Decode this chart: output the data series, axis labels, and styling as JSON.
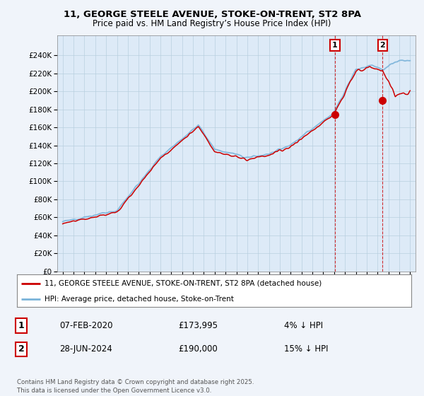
{
  "title_line1": "11, GEORGE STEELE AVENUE, STOKE-ON-TRENT, ST2 8PA",
  "title_line2": "Price paid vs. HM Land Registry’s House Price Index (HPI)",
  "xlim_start": 1994.5,
  "xlim_end": 2027.5,
  "ylim_min": 0,
  "ylim_max": 262000,
  "yticks": [
    0,
    20000,
    40000,
    60000,
    80000,
    100000,
    120000,
    140000,
    160000,
    180000,
    200000,
    220000,
    240000
  ],
  "ytick_labels": [
    "£0",
    "£20K",
    "£40K",
    "£60K",
    "£80K",
    "£100K",
    "£120K",
    "£140K",
    "£160K",
    "£180K",
    "£200K",
    "£220K",
    "£240K"
  ],
  "xticks": [
    1995,
    1996,
    1997,
    1998,
    1999,
    2000,
    2001,
    2002,
    2003,
    2004,
    2005,
    2006,
    2007,
    2008,
    2009,
    2010,
    2011,
    2012,
    2013,
    2014,
    2015,
    2016,
    2017,
    2018,
    2019,
    2020,
    2021,
    2022,
    2023,
    2024,
    2025,
    2026,
    2027
  ],
  "hpi_color": "#7ab3d9",
  "price_color": "#cc0000",
  "shade_color": "#ddeaf7",
  "sale1_year": 2020.08,
  "sale1_price": 173995,
  "sale2_year": 2024.47,
  "sale2_price": 190000,
  "sale1_label": "1",
  "sale2_label": "2",
  "legend_label1": "11, GEORGE STEELE AVENUE, STOKE-ON-TRENT, ST2 8PA (detached house)",
  "legend_label2": "HPI: Average price, detached house, Stoke-on-Trent",
  "footnote1_num": "1",
  "footnote1_date": "07-FEB-2020",
  "footnote1_price": "£173,995",
  "footnote1_hpi": "4% ↓ HPI",
  "footnote2_num": "2",
  "footnote2_date": "28-JUN-2024",
  "footnote2_price": "£190,000",
  "footnote2_hpi": "15% ↓ HPI",
  "copyright": "Contains HM Land Registry data © Crown copyright and database right 2025.\nThis data is licensed under the Open Government Licence v3.0.",
  "background_color": "#f0f4fa",
  "plot_bg_color": "#ddeaf7"
}
